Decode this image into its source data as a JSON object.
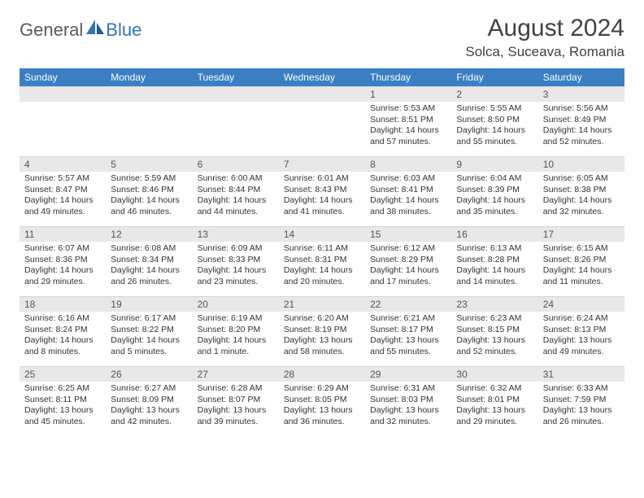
{
  "logo": {
    "general": "General",
    "blue": "Blue"
  },
  "title": "August 2024",
  "location": "Solca, Suceava, Romania",
  "colors": {
    "header_bg": "#3a7fc4",
    "header_text": "#ffffff",
    "daynum_bg": "#e8e8e8",
    "daynum_text": "#555555",
    "body_text": "#333333",
    "title_text": "#424242",
    "logo_gray": "#5a5a5a",
    "logo_blue": "#2f76bb"
  },
  "day_headers": [
    "Sunday",
    "Monday",
    "Tuesday",
    "Wednesday",
    "Thursday",
    "Friday",
    "Saturday"
  ],
  "weeks": [
    [
      null,
      null,
      null,
      null,
      {
        "n": "1",
        "sr": "Sunrise: 5:53 AM",
        "ss": "Sunset: 8:51 PM",
        "dl": "Daylight: 14 hours and 57 minutes."
      },
      {
        "n": "2",
        "sr": "Sunrise: 5:55 AM",
        "ss": "Sunset: 8:50 PM",
        "dl": "Daylight: 14 hours and 55 minutes."
      },
      {
        "n": "3",
        "sr": "Sunrise: 5:56 AM",
        "ss": "Sunset: 8:49 PM",
        "dl": "Daylight: 14 hours and 52 minutes."
      }
    ],
    [
      {
        "n": "4",
        "sr": "Sunrise: 5:57 AM",
        "ss": "Sunset: 8:47 PM",
        "dl": "Daylight: 14 hours and 49 minutes."
      },
      {
        "n": "5",
        "sr": "Sunrise: 5:59 AM",
        "ss": "Sunset: 8:46 PM",
        "dl": "Daylight: 14 hours and 46 minutes."
      },
      {
        "n": "6",
        "sr": "Sunrise: 6:00 AM",
        "ss": "Sunset: 8:44 PM",
        "dl": "Daylight: 14 hours and 44 minutes."
      },
      {
        "n": "7",
        "sr": "Sunrise: 6:01 AM",
        "ss": "Sunset: 8:43 PM",
        "dl": "Daylight: 14 hours and 41 minutes."
      },
      {
        "n": "8",
        "sr": "Sunrise: 6:03 AM",
        "ss": "Sunset: 8:41 PM",
        "dl": "Daylight: 14 hours and 38 minutes."
      },
      {
        "n": "9",
        "sr": "Sunrise: 6:04 AM",
        "ss": "Sunset: 8:39 PM",
        "dl": "Daylight: 14 hours and 35 minutes."
      },
      {
        "n": "10",
        "sr": "Sunrise: 6:05 AM",
        "ss": "Sunset: 8:38 PM",
        "dl": "Daylight: 14 hours and 32 minutes."
      }
    ],
    [
      {
        "n": "11",
        "sr": "Sunrise: 6:07 AM",
        "ss": "Sunset: 8:36 PM",
        "dl": "Daylight: 14 hours and 29 minutes."
      },
      {
        "n": "12",
        "sr": "Sunrise: 6:08 AM",
        "ss": "Sunset: 8:34 PM",
        "dl": "Daylight: 14 hours and 26 minutes."
      },
      {
        "n": "13",
        "sr": "Sunrise: 6:09 AM",
        "ss": "Sunset: 8:33 PM",
        "dl": "Daylight: 14 hours and 23 minutes."
      },
      {
        "n": "14",
        "sr": "Sunrise: 6:11 AM",
        "ss": "Sunset: 8:31 PM",
        "dl": "Daylight: 14 hours and 20 minutes."
      },
      {
        "n": "15",
        "sr": "Sunrise: 6:12 AM",
        "ss": "Sunset: 8:29 PM",
        "dl": "Daylight: 14 hours and 17 minutes."
      },
      {
        "n": "16",
        "sr": "Sunrise: 6:13 AM",
        "ss": "Sunset: 8:28 PM",
        "dl": "Daylight: 14 hours and 14 minutes."
      },
      {
        "n": "17",
        "sr": "Sunrise: 6:15 AM",
        "ss": "Sunset: 8:26 PM",
        "dl": "Daylight: 14 hours and 11 minutes."
      }
    ],
    [
      {
        "n": "18",
        "sr": "Sunrise: 6:16 AM",
        "ss": "Sunset: 8:24 PM",
        "dl": "Daylight: 14 hours and 8 minutes."
      },
      {
        "n": "19",
        "sr": "Sunrise: 6:17 AM",
        "ss": "Sunset: 8:22 PM",
        "dl": "Daylight: 14 hours and 5 minutes."
      },
      {
        "n": "20",
        "sr": "Sunrise: 6:19 AM",
        "ss": "Sunset: 8:20 PM",
        "dl": "Daylight: 14 hours and 1 minute."
      },
      {
        "n": "21",
        "sr": "Sunrise: 6:20 AM",
        "ss": "Sunset: 8:19 PM",
        "dl": "Daylight: 13 hours and 58 minutes."
      },
      {
        "n": "22",
        "sr": "Sunrise: 6:21 AM",
        "ss": "Sunset: 8:17 PM",
        "dl": "Daylight: 13 hours and 55 minutes."
      },
      {
        "n": "23",
        "sr": "Sunrise: 6:23 AM",
        "ss": "Sunset: 8:15 PM",
        "dl": "Daylight: 13 hours and 52 minutes."
      },
      {
        "n": "24",
        "sr": "Sunrise: 6:24 AM",
        "ss": "Sunset: 8:13 PM",
        "dl": "Daylight: 13 hours and 49 minutes."
      }
    ],
    [
      {
        "n": "25",
        "sr": "Sunrise: 6:25 AM",
        "ss": "Sunset: 8:11 PM",
        "dl": "Daylight: 13 hours and 45 minutes."
      },
      {
        "n": "26",
        "sr": "Sunrise: 6:27 AM",
        "ss": "Sunset: 8:09 PM",
        "dl": "Daylight: 13 hours and 42 minutes."
      },
      {
        "n": "27",
        "sr": "Sunrise: 6:28 AM",
        "ss": "Sunset: 8:07 PM",
        "dl": "Daylight: 13 hours and 39 minutes."
      },
      {
        "n": "28",
        "sr": "Sunrise: 6:29 AM",
        "ss": "Sunset: 8:05 PM",
        "dl": "Daylight: 13 hours and 36 minutes."
      },
      {
        "n": "29",
        "sr": "Sunrise: 6:31 AM",
        "ss": "Sunset: 8:03 PM",
        "dl": "Daylight: 13 hours and 32 minutes."
      },
      {
        "n": "30",
        "sr": "Sunrise: 6:32 AM",
        "ss": "Sunset: 8:01 PM",
        "dl": "Daylight: 13 hours and 29 minutes."
      },
      {
        "n": "31",
        "sr": "Sunrise: 6:33 AM",
        "ss": "Sunset: 7:59 PM",
        "dl": "Daylight: 13 hours and 26 minutes."
      }
    ]
  ]
}
